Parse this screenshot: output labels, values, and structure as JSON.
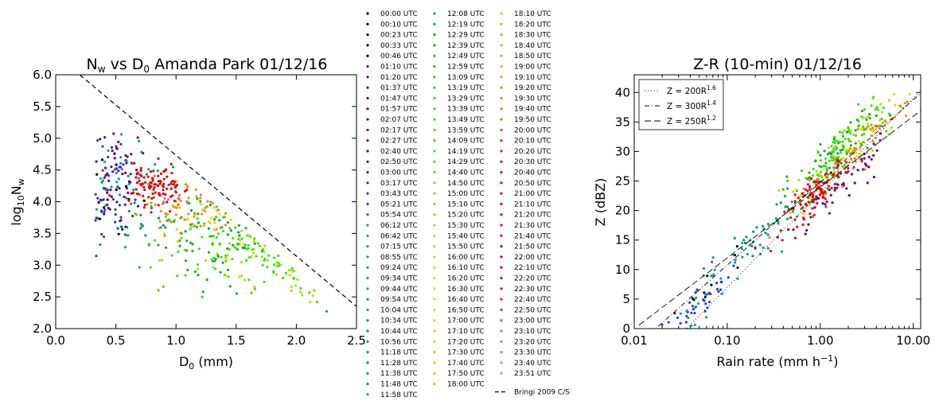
{
  "chart_data": [
    {
      "type": "scatter",
      "title": "Nₘ vs D₀ Amanda Park 01/12/16",
      "title_parts": {
        "a": "N",
        "a_sub": "w",
        "b": " vs D",
        "b_sub": "0",
        "c": " Amanda Park 01/12/16"
      },
      "xlabel_parts": {
        "a": "D",
        "a_sub": "0",
        "b": " (mm)"
      },
      "ylabel_parts": {
        "a": "log",
        "a_sub": "10",
        "b": "N",
        "b_sub": "w"
      },
      "xlim": [
        0.0,
        2.5
      ],
      "ylim": [
        2.0,
        6.0
      ],
      "xticks": [
        "0.0",
        "0.5",
        "1.0",
        "1.5",
        "2.0",
        "2.5"
      ],
      "yticks": [
        "2.0",
        "2.5",
        "3.0",
        "3.5",
        "4.0",
        "4.5",
        "5.0",
        "5.5",
        "6.0"
      ],
      "reference_line": {
        "name": "Bringi 2009 C/S",
        "x": [
          0.2,
          2.5
        ],
        "y": [
          6.0,
          2.35
        ],
        "style": "dashed"
      },
      "clusters": [
        {
          "label": "00:00 UTC",
          "color": "#000000",
          "cx": 0.55,
          "cy": 4.2,
          "sx": 0.15,
          "sy": 0.4,
          "n": 18
        },
        {
          "label": "01:47 UTC",
          "color": "#6a0080",
          "cx": 0.5,
          "cy": 4.5,
          "sx": 0.12,
          "sy": 0.35,
          "n": 55
        },
        {
          "label": "03:43 UTC",
          "color": "#2a3cc8",
          "cx": 0.45,
          "cy": 4.0,
          "sx": 0.08,
          "sy": 0.45,
          "n": 35
        },
        {
          "label": "07:15 UTC",
          "color": "#0a9ab4",
          "cx": 0.55,
          "cy": 4.2,
          "sx": 0.15,
          "sy": 0.4,
          "n": 30
        },
        {
          "label": "10:44 UTC",
          "color": "#009a6a",
          "cx": 0.8,
          "cy": 3.9,
          "sx": 0.25,
          "sy": 0.35,
          "n": 40
        },
        {
          "label": "12:39 UTC",
          "color": "#12b020",
          "cx": 1.3,
          "cy": 3.4,
          "sx": 0.25,
          "sy": 0.35,
          "n": 70
        },
        {
          "label": "14:09 UTC",
          "color": "#33e600",
          "cx": 1.45,
          "cy": 3.25,
          "sx": 0.3,
          "sy": 0.35,
          "n": 90
        },
        {
          "label": "15:40 UTC",
          "color": "#a8e200",
          "cx": 1.6,
          "cy": 3.1,
          "sx": 0.35,
          "sy": 0.3,
          "n": 45
        },
        {
          "label": "17:00 UTC",
          "color": "#f0d000",
          "cx": 1.15,
          "cy": 3.75,
          "sx": 0.15,
          "sy": 0.25,
          "n": 25
        },
        {
          "label": "19:20 UTC",
          "color": "#f08c00",
          "cx": 1.05,
          "cy": 3.95,
          "sx": 0.15,
          "sy": 0.25,
          "n": 45
        },
        {
          "label": "21:00 UTC",
          "color": "#e60000",
          "cx": 0.85,
          "cy": 4.25,
          "sx": 0.1,
          "sy": 0.18,
          "n": 90
        },
        {
          "label": "23:10 UTC",
          "color": "#d47272",
          "cx": 1.0,
          "cy": 4.0,
          "sx": 0.15,
          "sy": 0.2,
          "n": 15
        }
      ]
    },
    {
      "type": "scatter",
      "title": "Z-R (10-min) 01/12/16",
      "xlabel": "Rain rate (mm h⁻¹)",
      "xlabel_parts": {
        "a": "Rain rate (mm h",
        "sup": "−1",
        "b": ")"
      },
      "ylabel": "Z (dBZ)",
      "xscale": "log",
      "xlim": [
        0.01,
        12.0
      ],
      "ylim": [
        0,
        43
      ],
      "xticks": [
        {
          "v": 0.01,
          "label": "0.01"
        },
        {
          "v": 0.1,
          "label": "0.10"
        },
        {
          "v": 1.0,
          "label": "1.00"
        },
        {
          "v": 10.0,
          "label": "10.00"
        }
      ],
      "yticks": [
        0,
        5,
        10,
        15,
        20,
        25,
        30,
        35,
        40
      ],
      "relations": [
        {
          "label": "Z = 200R",
          "sup": "1.6",
          "a": 200,
          "b": 1.6,
          "dash": "1 3"
        },
        {
          "label": "Z = 300R",
          "sup": "1.4",
          "a": 300,
          "b": 1.4,
          "dash": "6 3 1 3"
        },
        {
          "label": "Z = 250R",
          "sup": "1.2",
          "a": 250,
          "b": 1.2,
          "dash": "8 4"
        }
      ],
      "legend_position": "upper-left",
      "clusters": [
        {
          "label": "00:00 UTC",
          "color": "#000000",
          "cx": 0.05,
          "dz": 0.0,
          "sdex": 0.25,
          "sz": 2.0,
          "n": 12
        },
        {
          "label": "01:47 UTC",
          "color": "#6a0080",
          "cx": 1.5,
          "dz": -2.5,
          "sdex": 0.35,
          "sz": 2.0,
          "n": 55
        },
        {
          "label": "03:43 UTC",
          "color": "#2a3cc8",
          "cx": 0.05,
          "dz": -1.0,
          "sdex": 0.25,
          "sz": 1.5,
          "n": 40
        },
        {
          "label": "07:15 UTC",
          "color": "#0a9ab4",
          "cx": 0.12,
          "dz": 0.0,
          "sdex": 0.35,
          "sz": 2.0,
          "n": 35
        },
        {
          "label": "10:44 UTC",
          "color": "#009a6a",
          "cx": 0.5,
          "dz": 1.0,
          "sdex": 0.45,
          "sz": 2.0,
          "n": 45
        },
        {
          "label": "12:39 UTC",
          "color": "#12b020",
          "cx": 1.2,
          "dz": 2.5,
          "sdex": 0.3,
          "sz": 2.0,
          "n": 60
        },
        {
          "label": "14:09 UTC",
          "color": "#33e600",
          "cx": 1.6,
          "dz": 3.5,
          "sdex": 0.25,
          "sz": 2.0,
          "n": 90
        },
        {
          "label": "15:40 UTC",
          "color": "#a8e200",
          "cx": 2.2,
          "dz": 2.5,
          "sdex": 0.3,
          "sz": 2.0,
          "n": 40
        },
        {
          "label": "17:00 UTC",
          "color": "#f0d000",
          "cx": 2.0,
          "dz": 1.0,
          "sdex": 0.3,
          "sz": 1.5,
          "n": 25
        },
        {
          "label": "19:20 UTC",
          "color": "#f08c00",
          "cx": 2.5,
          "dz": 0.5,
          "sdex": 0.3,
          "sz": 1.5,
          "n": 55
        },
        {
          "label": "21:00 UTC",
          "color": "#e60000",
          "cx": 0.95,
          "dz": -0.5,
          "sdex": 0.18,
          "sz": 1.5,
          "n": 90
        },
        {
          "label": "23:10 UTC",
          "color": "#d47272",
          "cx": 1.5,
          "dz": 0.5,
          "sdex": 0.2,
          "sz": 1.5,
          "n": 15
        }
      ]
    }
  ],
  "legend": {
    "columns": [
      [
        {
          "label": "00:00 UTC",
          "color": "#000000"
        },
        {
          "label": "00:10 UTC",
          "color": "#000000"
        },
        {
          "label": "00:23 UTC",
          "color": "#000000"
        },
        {
          "label": "00:33 UTC",
          "color": "#000000"
        },
        {
          "label": "00:46 UTC",
          "color": "#000000"
        },
        {
          "label": "01:10 UTC",
          "color": "#6a0080"
        },
        {
          "label": "01:20 UTC",
          "color": "#6a0080"
        },
        {
          "label": "01:37 UTC",
          "color": "#6a0080"
        },
        {
          "label": "01:47 UTC",
          "color": "#6a0080"
        },
        {
          "label": "01:57 UTC",
          "color": "#6a0080"
        },
        {
          "label": "02:07 UTC",
          "color": "#6a0080"
        },
        {
          "label": "02:17 UTC",
          "color": "#6a0080"
        },
        {
          "label": "02:27 UTC",
          "color": "#6a0080"
        },
        {
          "label": "02:40 UTC",
          "color": "#6a0080"
        },
        {
          "label": "02:50 UTC",
          "color": "#6a0080"
        },
        {
          "label": "03:00 UTC",
          "color": "#4a0aa0"
        },
        {
          "label": "03:17 UTC",
          "color": "#3a1ab0"
        },
        {
          "label": "03:43 UTC",
          "color": "#2a3cc8"
        },
        {
          "label": "05:21 UTC",
          "color": "#2a3cc8"
        },
        {
          "label": "05:54 UTC",
          "color": "#2060c8"
        },
        {
          "label": "06:12 UTC",
          "color": "#1a80c0"
        },
        {
          "label": "06:42 UTC",
          "color": "#1a8cc0"
        },
        {
          "label": "07:15 UTC",
          "color": "#0a9ab4"
        },
        {
          "label": "08:55 UTC",
          "color": "#0a9ab4"
        },
        {
          "label": "09:24 UTC",
          "color": "#0a9aa8"
        },
        {
          "label": "09:34 UTC",
          "color": "#0a9aa0"
        },
        {
          "label": "09:44 UTC",
          "color": "#009a90"
        },
        {
          "label": "09:54 UTC",
          "color": "#009a88"
        },
        {
          "label": "10:04 UTC",
          "color": "#009a80"
        },
        {
          "label": "10:34 UTC",
          "color": "#009a70"
        },
        {
          "label": "10:44 UTC",
          "color": "#009a6a"
        },
        {
          "label": "10:56 UTC",
          "color": "#009a60"
        },
        {
          "label": "11:18 UTC",
          "color": "#00a050"
        },
        {
          "label": "11:28 UTC",
          "color": "#00a040"
        },
        {
          "label": "11:38 UTC",
          "color": "#00a838"
        },
        {
          "label": "11:48 UTC",
          "color": "#08a830"
        },
        {
          "label": "11:58 UTC",
          "color": "#10ac28"
        }
      ],
      [
        {
          "label": "12:08 UTC",
          "color": "#12b020"
        },
        {
          "label": "12:19 UTC",
          "color": "#12b020"
        },
        {
          "label": "12:29 UTC",
          "color": "#12b020"
        },
        {
          "label": "12:39 UTC",
          "color": "#12b020"
        },
        {
          "label": "12:49 UTC",
          "color": "#18c018"
        },
        {
          "label": "12:59 UTC",
          "color": "#1ec818"
        },
        {
          "label": "13:09 UTC",
          "color": "#22d010"
        },
        {
          "label": "13:19 UTC",
          "color": "#28d810"
        },
        {
          "label": "13:29 UTC",
          "color": "#2ad810"
        },
        {
          "label": "13:39 UTC",
          "color": "#2ce008"
        },
        {
          "label": "13:49 UTC",
          "color": "#30e008"
        },
        {
          "label": "13:59 UTC",
          "color": "#33e600"
        },
        {
          "label": "14:09 UTC",
          "color": "#33e600"
        },
        {
          "label": "14:19 UTC",
          "color": "#40e600"
        },
        {
          "label": "14:29 UTC",
          "color": "#4ae600"
        },
        {
          "label": "14:40 UTC",
          "color": "#58e600"
        },
        {
          "label": "14:50 UTC",
          "color": "#68e400"
        },
        {
          "label": "15:00 UTC",
          "color": "#78e400"
        },
        {
          "label": "15:10 UTC",
          "color": "#88e200"
        },
        {
          "label": "15:20 UTC",
          "color": "#96e200"
        },
        {
          "label": "15:30 UTC",
          "color": "#a0e200"
        },
        {
          "label": "15:40 UTC",
          "color": "#a8e200"
        },
        {
          "label": "15:50 UTC",
          "color": "#b4e000"
        },
        {
          "label": "16:00 UTC",
          "color": "#c0de00"
        },
        {
          "label": "16:10 UTC",
          "color": "#ccdc00"
        },
        {
          "label": "16:20 UTC",
          "color": "#d6da00"
        },
        {
          "label": "16:30 UTC",
          "color": "#e0d800"
        },
        {
          "label": "16:40 UTC",
          "color": "#e8d600"
        },
        {
          "label": "16:50 UTC",
          "color": "#eed400"
        },
        {
          "label": "17:00 UTC",
          "color": "#f0d000"
        },
        {
          "label": "17:10 UTC",
          "color": "#f0cc00"
        },
        {
          "label": "17:20 UTC",
          "color": "#f0c800"
        },
        {
          "label": "17:30 UTC",
          "color": "#f0c400"
        },
        {
          "label": "17:40 UTC",
          "color": "#f0c000"
        },
        {
          "label": "17:50 UTC",
          "color": "#f0bc00"
        },
        {
          "label": "18:00 UTC",
          "color": "#f0b800"
        }
      ],
      [
        {
          "label": "18:10 UTC",
          "color": "#f0b400"
        },
        {
          "label": "18:20 UTC",
          "color": "#f0b000"
        },
        {
          "label": "18:30 UTC",
          "color": "#f0ac00"
        },
        {
          "label": "18:40 UTC",
          "color": "#f0a800"
        },
        {
          "label": "18:50 UTC",
          "color": "#f0a400"
        },
        {
          "label": "19:00 UTC",
          "color": "#f0a000"
        },
        {
          "label": "19:10 UTC",
          "color": "#f09800"
        },
        {
          "label": "19:20 UTC",
          "color": "#f08c00"
        },
        {
          "label": "19:30 UTC",
          "color": "#f08000"
        },
        {
          "label": "19:40 UTC",
          "color": "#f07400"
        },
        {
          "label": "19:50 UTC",
          "color": "#f06800"
        },
        {
          "label": "20:00 UTC",
          "color": "#f04800"
        },
        {
          "label": "20:10 UTC",
          "color": "#ee2800"
        },
        {
          "label": "20:20 UTC",
          "color": "#ea1000"
        },
        {
          "label": "20:30 UTC",
          "color": "#e60000"
        },
        {
          "label": "20:40 UTC",
          "color": "#e60000"
        },
        {
          "label": "20:50 UTC",
          "color": "#e60000"
        },
        {
          "label": "21:00 UTC",
          "color": "#e60000"
        },
        {
          "label": "21:10 UTC",
          "color": "#e00000"
        },
        {
          "label": "21:20 UTC",
          "color": "#dc0000"
        },
        {
          "label": "21:30 UTC",
          "color": "#d80000"
        },
        {
          "label": "21:40 UTC",
          "color": "#d40000"
        },
        {
          "label": "21:50 UTC",
          "color": "#d00000"
        },
        {
          "label": "22:00 UTC",
          "color": "#cc0000"
        },
        {
          "label": "22:10 UTC",
          "color": "#c80000"
        },
        {
          "label": "22:20 UTC",
          "color": "#c80000"
        },
        {
          "label": "22:30 UTC",
          "color": "#cc1010"
        },
        {
          "label": "22:40 UTC",
          "color": "#d02020"
        },
        {
          "label": "22:50 UTC",
          "color": "#d43030"
        },
        {
          "label": "23:00 UTC",
          "color": "#d45050"
        },
        {
          "label": "23:10 UTC",
          "color": "#d47272"
        },
        {
          "label": "23:20 UTC",
          "color": "#d47878"
        },
        {
          "label": "23:30 UTC",
          "color": "#d48080"
        },
        {
          "label": "23:40 UTC",
          "color": "#d48888"
        },
        {
          "label": "23:51 UTC",
          "color": "#d49090"
        }
      ]
    ],
    "line_entry": "Bringi 2009 C/S"
  }
}
